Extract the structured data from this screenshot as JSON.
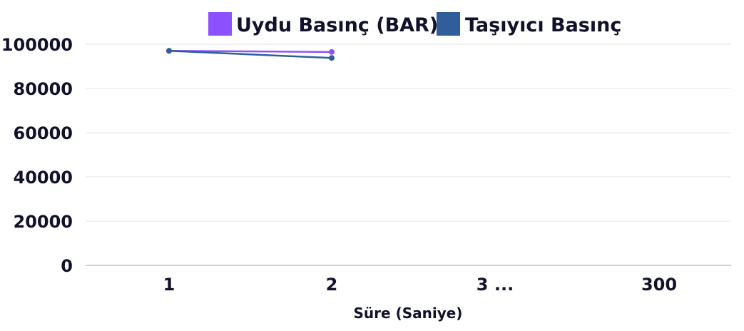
{
  "chart_data": {
    "type": "line",
    "categories": [
      "1",
      "2",
      "3 ...",
      "300"
    ],
    "xlabel": "Süre (Saniye)",
    "ylabel": "",
    "ylim": [
      0,
      100000
    ],
    "yticks": [
      "0",
      "20000",
      "40000",
      "60000",
      "80000",
      "100000"
    ],
    "grid": true,
    "legend_position": "top-center",
    "series": [
      {
        "name": "Uydu Basınç (BAR)",
        "color": "#8c52ff",
        "values": [
          97000,
          96500,
          null,
          null
        ]
      },
      {
        "name": "Taşıyıcı Basınç",
        "color": "#2f5e9b",
        "values": [
          97000,
          93800,
          null,
          null
        ]
      }
    ]
  }
}
